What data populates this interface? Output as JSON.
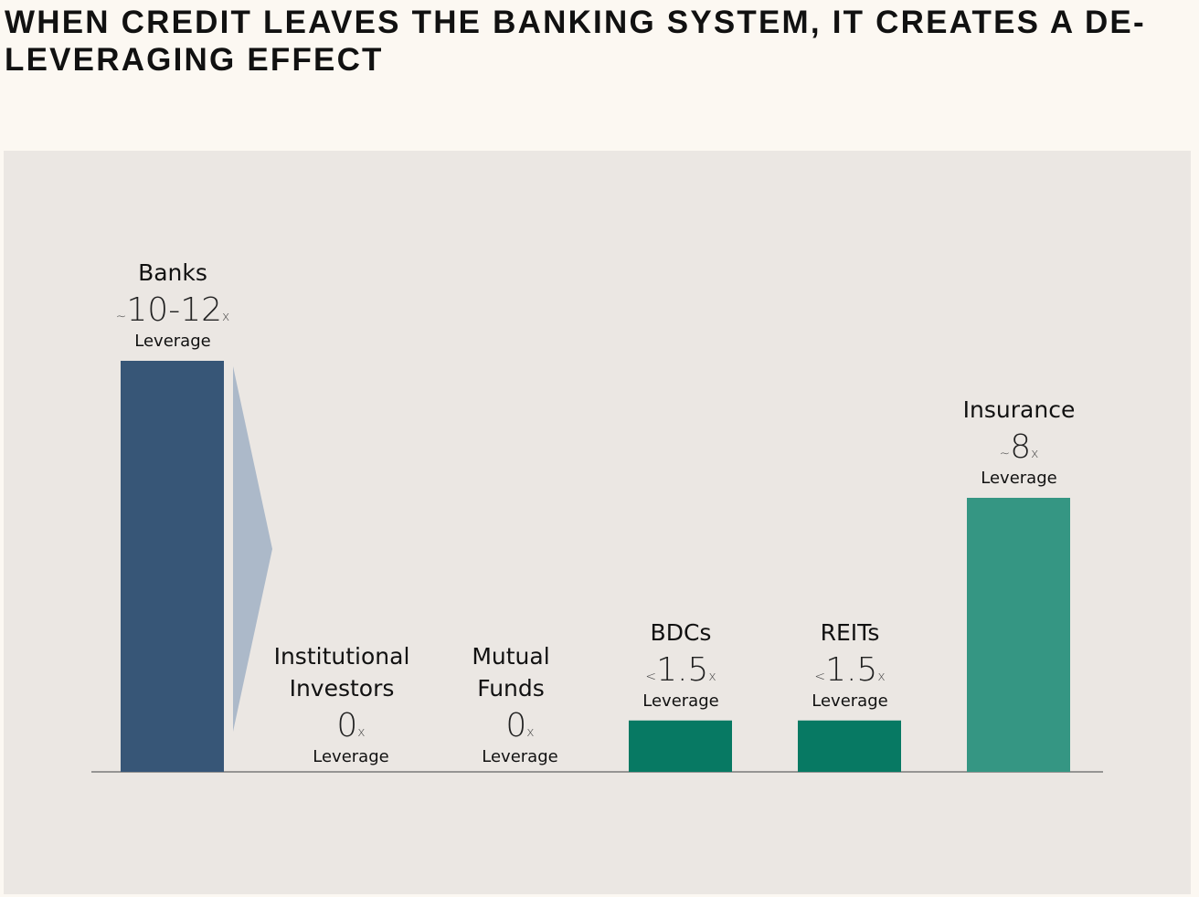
{
  "title": "WHEN CREDIT LEAVES THE BANKING SYSTEM, IT CREATES A DE-LEVERAGING EFFECT",
  "chart_data": {
    "type": "bar",
    "ylim": [
      0,
      12
    ],
    "leverage_label": "Leverage",
    "categories": [
      {
        "name": [
          "Banks"
        ],
        "prefix": "~",
        "value_label": "10-12",
        "suffix": "x",
        "value": 12,
        "color": "#375677"
      },
      {
        "name": [
          "Institutional",
          "Investors"
        ],
        "prefix": "",
        "value_label": "0",
        "suffix": "x",
        "value": 0,
        "color": "#375677"
      },
      {
        "name": [
          "Mutual",
          "Funds"
        ],
        "prefix": "",
        "value_label": "0",
        "suffix": "x",
        "value": 0,
        "color": "#375677"
      },
      {
        "name": [
          "BDCs"
        ],
        "prefix": "<",
        "value_label": "1.5",
        "suffix": "x",
        "value": 1.5,
        "color": "#077963"
      },
      {
        "name": [
          "REITs"
        ],
        "prefix": "<",
        "value_label": "1.5",
        "suffix": "x",
        "value": 1.5,
        "color": "#077963"
      },
      {
        "name": [
          "Insurance"
        ],
        "prefix": "~",
        "value_label": "8",
        "suffix": "x",
        "value": 8,
        "color": "#359683"
      }
    ],
    "arrow_color": "#acb9c9",
    "baseline_color": "#7a7a7a"
  }
}
